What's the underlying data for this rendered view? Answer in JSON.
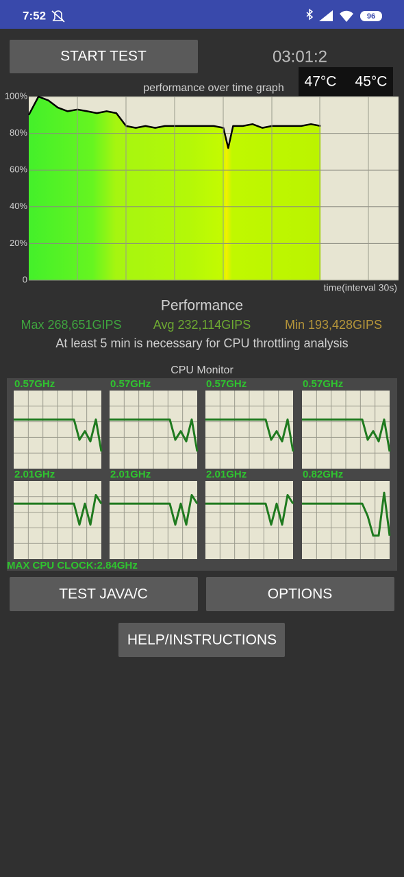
{
  "status_bar": {
    "time": "7:52",
    "battery": "96"
  },
  "start_button": "START TEST",
  "timer": "03:01:2",
  "temperatures": [
    "47°C",
    "45°C"
  ],
  "chart_data": {
    "type": "line",
    "title": "performance over time graph",
    "x_label": "time(interval 30s)",
    "x": [
      0,
      6,
      12,
      18,
      24,
      30,
      36,
      42,
      48,
      54,
      60,
      66,
      72,
      78,
      84,
      90,
      96,
      102,
      108,
      114,
      120,
      123,
      126,
      132,
      138,
      144,
      150,
      156,
      162,
      168,
      174,
      180
    ],
    "values": [
      90,
      100,
      98,
      94,
      92,
      93,
      92,
      91,
      92,
      91,
      84,
      83,
      84,
      83,
      84,
      84,
      84,
      84,
      84,
      84,
      83,
      72,
      84,
      84,
      85,
      83,
      84,
      84,
      84,
      84,
      85,
      84
    ],
    "color": "#000000",
    "xlim": [
      0,
      228
    ],
    "ylim": [
      0,
      100
    ],
    "yticks": [
      0,
      {
        "value": 20,
        "label": "20%"
      },
      {
        "value": 40,
        "label": "40%"
      },
      {
        "value": 60,
        "label": "60%"
      },
      {
        "value": 80,
        "label": "80%"
      },
      {
        "value": 100,
        "label": "100%"
      }
    ],
    "grid": true
  },
  "performance": {
    "title": "Performance",
    "max": "Max 268,651GIPS",
    "avg": "Avg 232,114GIPS",
    "min": "Min 193,428GIPS",
    "note": "At least 5 min is necessary for CPU throttling analysis"
  },
  "cpu_monitor": {
    "title": "CPU Monitor",
    "ylim": [
      0,
      100
    ],
    "color": "#1f7a1f",
    "cores": [
      {
        "label": "0.57GHz",
        "values": [
          63,
          63,
          63,
          63,
          63,
          63,
          63,
          63,
          63,
          63,
          63,
          63,
          37,
          48,
          35,
          63,
          22
        ]
      },
      {
        "label": "0.57GHz",
        "values": [
          63,
          63,
          63,
          63,
          63,
          63,
          63,
          63,
          63,
          63,
          63,
          63,
          37,
          48,
          35,
          63,
          22
        ]
      },
      {
        "label": "0.57GHz",
        "values": [
          63,
          63,
          63,
          63,
          63,
          63,
          63,
          63,
          63,
          63,
          63,
          63,
          37,
          48,
          35,
          63,
          22
        ]
      },
      {
        "label": "0.57GHz",
        "values": [
          63,
          63,
          63,
          63,
          63,
          63,
          63,
          63,
          63,
          63,
          63,
          63,
          37,
          48,
          35,
          63,
          22
        ]
      },
      {
        "label": "2.01GHz",
        "values": [
          71,
          71,
          71,
          71,
          71,
          71,
          71,
          71,
          71,
          71,
          71,
          71,
          44,
          71,
          44,
          82,
          71
        ]
      },
      {
        "label": "2.01GHz",
        "values": [
          71,
          71,
          71,
          71,
          71,
          71,
          71,
          71,
          71,
          71,
          71,
          71,
          44,
          71,
          44,
          82,
          71
        ]
      },
      {
        "label": "2.01GHz",
        "values": [
          71,
          71,
          71,
          71,
          71,
          71,
          71,
          71,
          71,
          71,
          71,
          71,
          44,
          71,
          44,
          82,
          71
        ]
      },
      {
        "label": "0.82GHz",
        "values": [
          71,
          71,
          71,
          71,
          71,
          71,
          71,
          71,
          71,
          71,
          71,
          71,
          55,
          30,
          30,
          85,
          30
        ]
      }
    ],
    "max_clock": "MAX CPU CLOCK:2.84GHz"
  },
  "buttons": {
    "test": "TEST JAVA/C",
    "options": "OPTIONS",
    "help": "HELP/INSTRUCTIONS"
  }
}
